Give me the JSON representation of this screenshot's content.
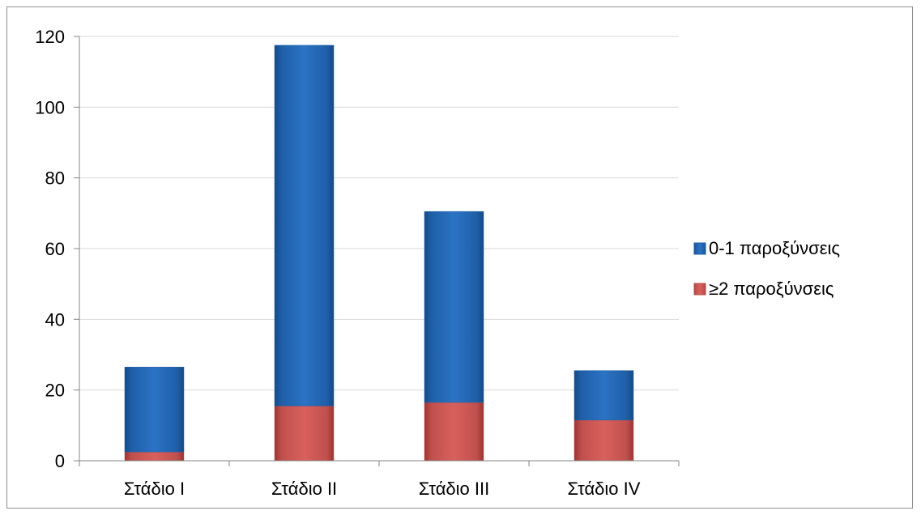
{
  "chart_data": {
    "type": "bar",
    "stacked": true,
    "categories": [
      "Στάδιο I",
      "Στάδιο II",
      "Στάδιο III",
      "Στάδιο IV"
    ],
    "series": [
      {
        "name": "≥2 παροξύνσεις",
        "values": [
          2.5,
          15.5,
          16.5,
          11.5
        ],
        "color": "#c0504d"
      },
      {
        "name": "0-1 παροξύνσεις",
        "values": [
          24,
          102,
          54,
          14
        ],
        "color": "#1f5fa8"
      }
    ],
    "legend_order": [
      "0-1 παροξύνσεις",
      "≥2 παροξύνσεις"
    ],
    "y_ticks": [
      "0",
      "20",
      "40",
      "60",
      "80",
      "100",
      "120"
    ],
    "ylim": [
      0,
      120
    ],
    "grid": true,
    "legend_position": "right"
  }
}
